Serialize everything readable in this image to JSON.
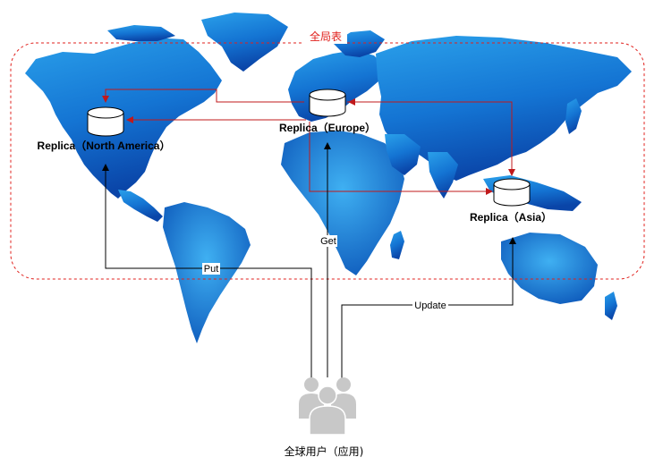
{
  "region": {
    "label": "全局表",
    "border_color": "#e0201c"
  },
  "map": {
    "ocean_color": "#ffffff",
    "land_light": "#1f8fe0",
    "land_dark": "#0a4fb5"
  },
  "replicas": [
    {
      "id": "north-america",
      "label": "Replica（North America）"
    },
    {
      "id": "europe",
      "label": "Replica（Europe）"
    },
    {
      "id": "asia",
      "label": "Replica（Asia）"
    }
  ],
  "users": {
    "label": "全球用户（应用)",
    "icon": "users-group-icon",
    "color": "#c8c8c8"
  },
  "edges": {
    "put": "Put",
    "get": "Get",
    "update": "Update",
    "replication_color": "#c0191b",
    "request_color": "#000000"
  }
}
